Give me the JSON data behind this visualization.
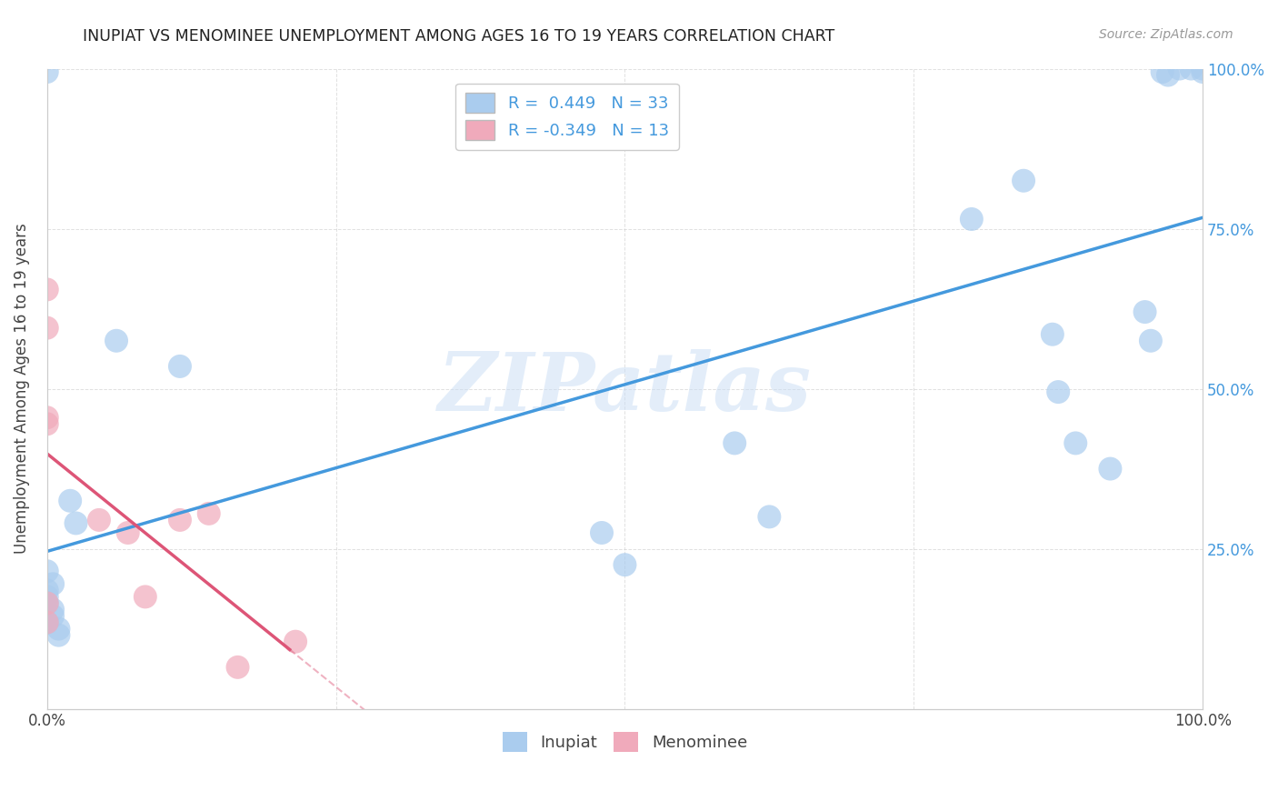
{
  "title": "INUPIAT VS MENOMINEE UNEMPLOYMENT AMONG AGES 16 TO 19 YEARS CORRELATION CHART",
  "source": "Source: ZipAtlas.com",
  "ylabel": "Unemployment Among Ages 16 to 19 years",
  "xlim": [
    0,
    1
  ],
  "ylim": [
    0,
    1
  ],
  "xtick_labels": [
    "0.0%",
    "",
    "",
    "",
    "100.0%"
  ],
  "xtick_positions": [
    0,
    0.25,
    0.5,
    0.75,
    1.0
  ],
  "ytick_labels": [
    "",
    "",
    "",
    "",
    ""
  ],
  "ytick_positions": [
    0,
    0.25,
    0.5,
    0.75,
    1.0
  ],
  "right_ytick_labels": [
    "100.0%",
    "75.0%",
    "50.0%",
    "25.0%"
  ],
  "right_ytick_positions": [
    1.0,
    0.75,
    0.5,
    0.25
  ],
  "inupiat_color": "#aaccee",
  "menominee_color": "#f0aabb",
  "inupiat_R": 0.449,
  "inupiat_N": 33,
  "menominee_R": -0.349,
  "menominee_N": 13,
  "inupiat_line_color": "#4499dd",
  "menominee_line_color": "#dd5577",
  "watermark_text": "ZIPatlas",
  "inupiat_x": [
    0.02,
    0.025,
    0.0,
    0.0,
    0.0,
    0.0,
    0.005,
    0.005,
    0.01,
    0.01,
    0.005,
    0.0,
    0.0,
    0.06,
    0.115,
    0.48,
    0.5,
    0.595,
    0.625,
    0.8,
    0.845,
    0.87,
    0.875,
    0.89,
    0.92,
    0.95,
    0.955,
    0.965,
    0.97,
    0.98,
    0.99,
    1.0,
    1.0
  ],
  "inupiat_y": [
    0.325,
    0.29,
    0.215,
    0.185,
    0.165,
    0.135,
    0.155,
    0.145,
    0.125,
    0.115,
    0.195,
    0.175,
    0.995,
    0.575,
    0.535,
    0.275,
    0.225,
    0.415,
    0.3,
    0.765,
    0.825,
    0.585,
    0.495,
    0.415,
    0.375,
    0.62,
    0.575,
    0.995,
    0.99,
    1.0,
    1.0,
    1.0,
    0.995
  ],
  "menominee_x": [
    0.0,
    0.0,
    0.0,
    0.0,
    0.0,
    0.0,
    0.045,
    0.07,
    0.085,
    0.115,
    0.14,
    0.165,
    0.215
  ],
  "menominee_y": [
    0.655,
    0.595,
    0.455,
    0.445,
    0.165,
    0.135,
    0.295,
    0.275,
    0.175,
    0.295,
    0.305,
    0.065,
    0.105
  ],
  "background_color": "#ffffff",
  "grid_color": "#cccccc"
}
